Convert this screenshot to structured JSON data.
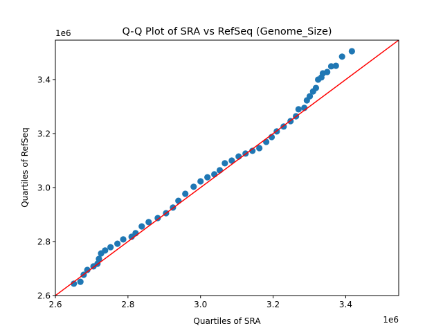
{
  "chart_data": {
    "type": "scatter",
    "title": "Q-Q Plot of SRA vs RefSeq (Genome_Size)",
    "xlabel": "Quartiles of SRA",
    "ylabel": "Quartiles of RefSeq",
    "x_offset_label": "1e6",
    "y_offset_label": "1e6",
    "xlim": [
      2.6,
      3.546
    ],
    "ylim": [
      2.6,
      3.546
    ],
    "xticks": [
      "2.6",
      "2.8",
      "3.0",
      "3.2",
      "3.4"
    ],
    "yticks": [
      "2.6",
      "2.8",
      "3.0",
      "3.2",
      "3.4"
    ],
    "grid": false,
    "point_color": "#1f77b4",
    "reference_line": {
      "type": "y=x",
      "color": "#ff0000"
    },
    "points": [
      [
        2.651,
        2.644
      ],
      [
        2.669,
        2.651
      ],
      [
        2.678,
        2.677
      ],
      [
        2.688,
        2.695
      ],
      [
        2.705,
        2.708
      ],
      [
        2.716,
        2.718
      ],
      [
        2.72,
        2.736
      ],
      [
        2.726,
        2.756
      ],
      [
        2.737,
        2.767
      ],
      [
        2.752,
        2.779
      ],
      [
        2.771,
        2.792
      ],
      [
        2.787,
        2.808
      ],
      [
        2.81,
        2.818
      ],
      [
        2.821,
        2.831
      ],
      [
        2.838,
        2.856
      ],
      [
        2.857,
        2.872
      ],
      [
        2.882,
        2.887
      ],
      [
        2.905,
        2.905
      ],
      [
        2.924,
        2.926
      ],
      [
        2.939,
        2.951
      ],
      [
        2.958,
        2.977
      ],
      [
        2.981,
        3.003
      ],
      [
        3.0,
        3.023
      ],
      [
        3.019,
        3.038
      ],
      [
        3.038,
        3.049
      ],
      [
        3.053,
        3.064
      ],
      [
        3.067,
        3.09
      ],
      [
        3.086,
        3.1
      ],
      [
        3.105,
        3.115
      ],
      [
        3.124,
        3.126
      ],
      [
        3.143,
        3.136
      ],
      [
        3.162,
        3.146
      ],
      [
        3.181,
        3.169
      ],
      [
        3.196,
        3.187
      ],
      [
        3.21,
        3.208
      ],
      [
        3.229,
        3.226
      ],
      [
        3.248,
        3.246
      ],
      [
        3.263,
        3.264
      ],
      [
        3.27,
        3.29
      ],
      [
        3.286,
        3.295
      ],
      [
        3.293,
        3.323
      ],
      [
        3.301,
        3.338
      ],
      [
        3.31,
        3.356
      ],
      [
        3.318,
        3.369
      ],
      [
        3.324,
        3.4
      ],
      [
        3.333,
        3.408
      ],
      [
        3.337,
        3.423
      ],
      [
        3.349,
        3.428
      ],
      [
        3.36,
        3.449
      ],
      [
        3.373,
        3.451
      ],
      [
        3.39,
        3.485
      ],
      [
        3.417,
        3.505
      ]
    ]
  }
}
